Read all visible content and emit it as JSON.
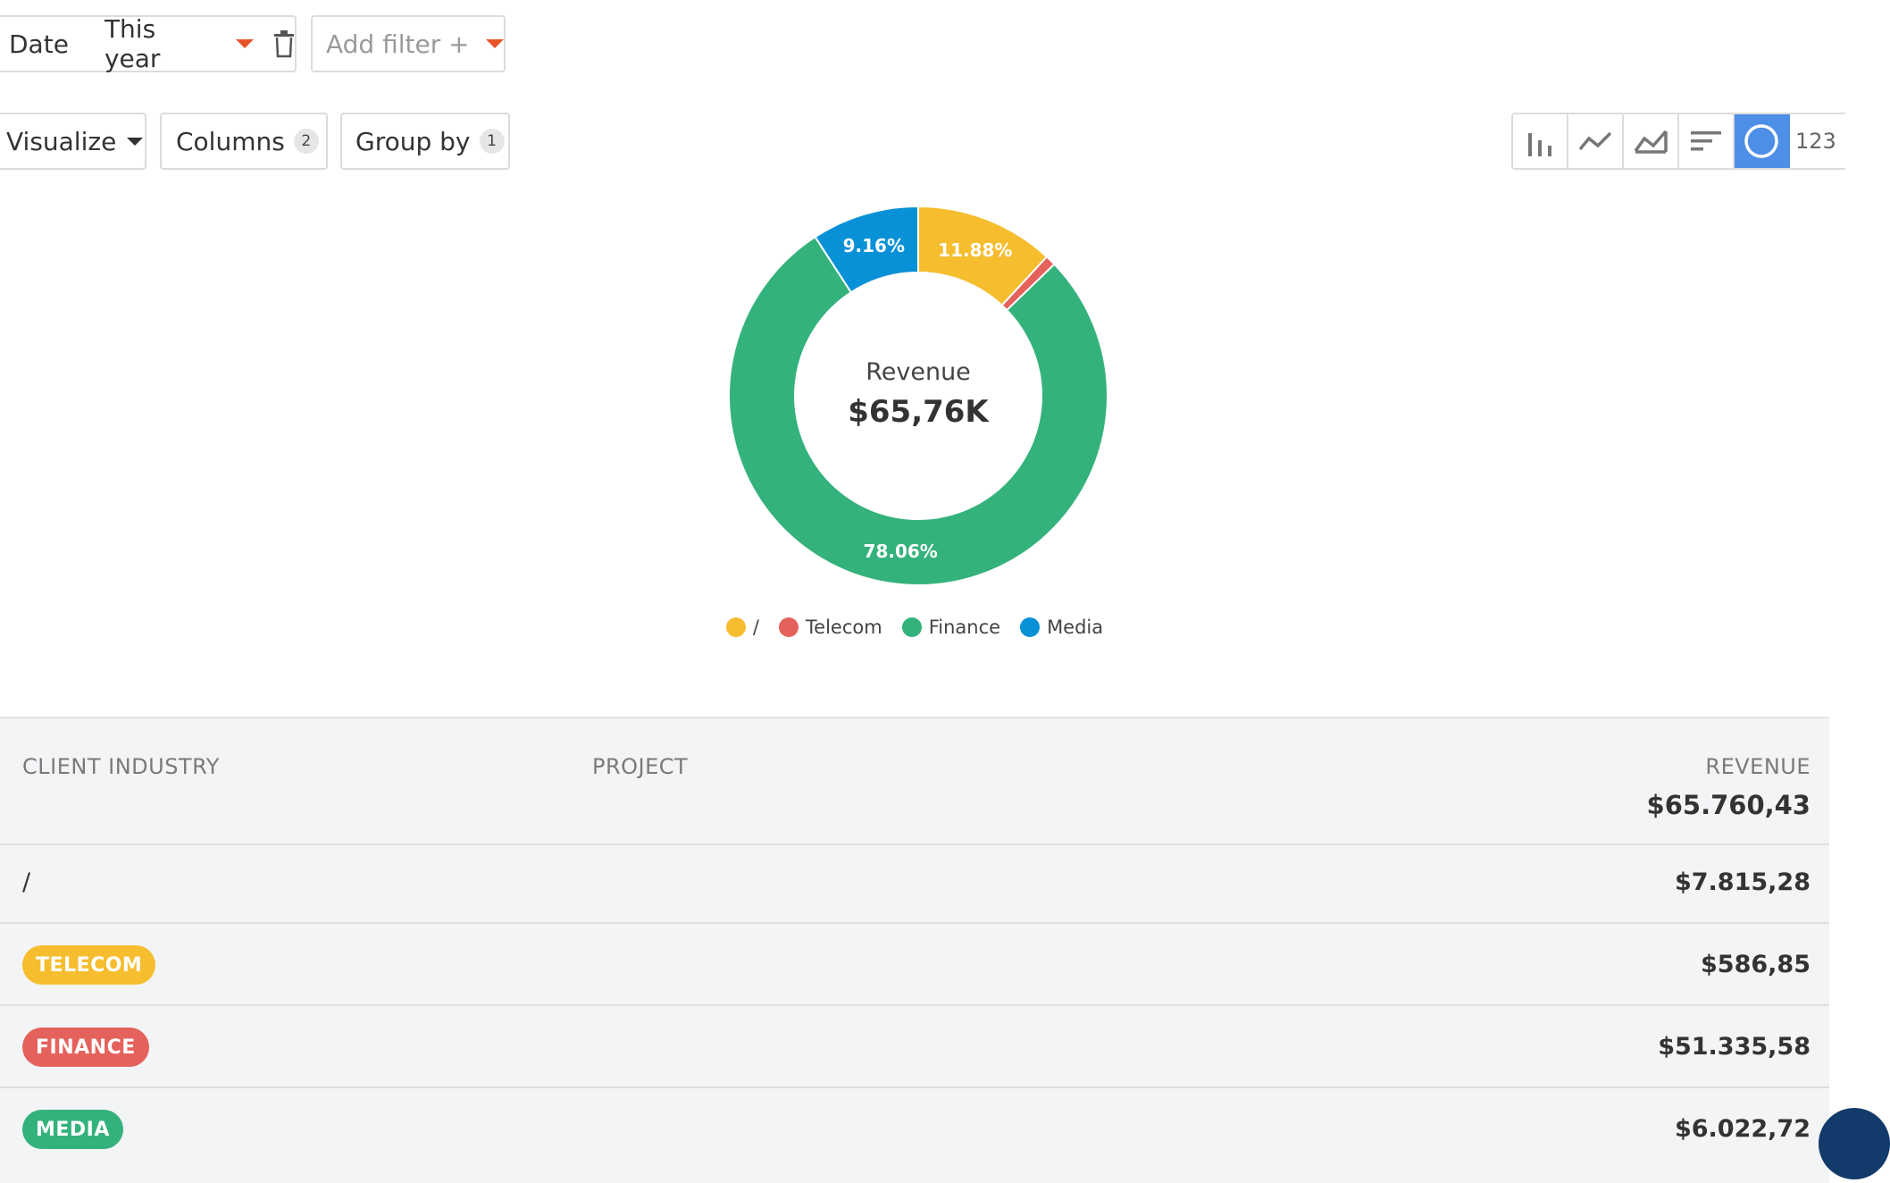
{
  "filters": {
    "date_label": "Date",
    "date_value": "This year",
    "add_filter": "Add filter +"
  },
  "toolbar": {
    "visualize": "Visualize",
    "columns": "Columns",
    "columns_count": "2",
    "group_by": "Group by",
    "group_by_count": "1",
    "viz_types": [
      "bar-chart-icon",
      "line-chart-icon",
      "area-chart-icon",
      "sorted-bar-icon",
      "donut-chart-icon",
      "number-icon"
    ],
    "number_label": "123",
    "active_viz": "donut"
  },
  "chart_data": {
    "type": "pie",
    "center_label": "Revenue",
    "center_value": "$65,76K",
    "categories": [
      "/",
      "Telecom",
      "Finance",
      "Media"
    ],
    "values": [
      11.88,
      0.89,
      78.06,
      9.16
    ],
    "labels": [
      "11.88%",
      "",
      "78.06%",
      "9.16%"
    ],
    "colors": [
      "#f6bd2f",
      "#e5625c",
      "#34b27b",
      "#0891d6"
    ],
    "legend_position": "bottom"
  },
  "table": {
    "headers": {
      "industry": "CLIENT INDUSTRY",
      "project": "PROJECT",
      "revenue": "REVENUE"
    },
    "total": "$65.760,43",
    "rows": [
      {
        "industry": "/",
        "tag": false,
        "color": "",
        "revenue": "$7.815,28"
      },
      {
        "industry": "TELECOM",
        "tag": true,
        "color": "#f6bd2f",
        "revenue": "$586,85"
      },
      {
        "industry": "FINANCE",
        "tag": true,
        "color": "#e5625c",
        "revenue": "$51.335,58"
      },
      {
        "industry": "MEDIA",
        "tag": true,
        "color": "#34b27b",
        "revenue": "$6.022,72"
      }
    ]
  }
}
